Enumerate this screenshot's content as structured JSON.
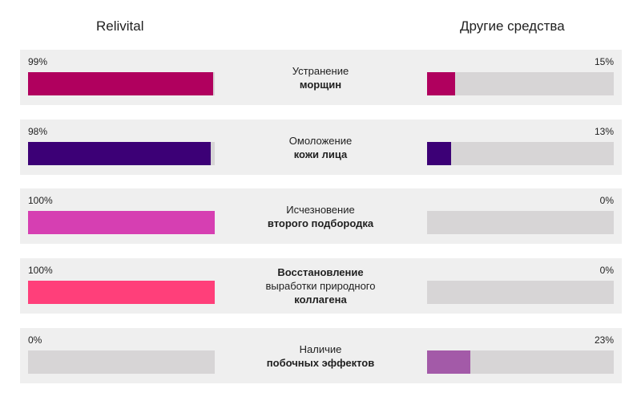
{
  "chart_data": {
    "type": "bar",
    "orientation": "horizontal",
    "series": [
      {
        "name": "Relivital",
        "colors": [
          "#b0005e",
          "#3c0076",
          "#d63fb2",
          "#ff3f7a",
          "#d7d5d6"
        ],
        "values": [
          99,
          98,
          100,
          100,
          0
        ],
        "labels": [
          "99%",
          "98%",
          "100%",
          "100%",
          "0%"
        ]
      },
      {
        "name": "Другие средства",
        "colors": [
          "#b0005e",
          "#3c0076",
          "#d63fb2",
          "#ff3f7a",
          "#a35aa8"
        ],
        "values": [
          15,
          13,
          0,
          0,
          23
        ],
        "labels": [
          "15%",
          "13%",
          "0%",
          "0%",
          "23%"
        ]
      }
    ],
    "categories": [
      {
        "lines": [
          {
            "text": "Устранение",
            "bold": false
          },
          {
            "text": "морщин",
            "bold": true
          }
        ]
      },
      {
        "lines": [
          {
            "text": "Омоложение",
            "bold": false
          },
          {
            "text": "кожи лица",
            "bold": true
          }
        ]
      },
      {
        "lines": [
          {
            "text": "Исчезновение",
            "bold": false
          },
          {
            "text": "второго подбородка",
            "bold": true
          }
        ]
      },
      {
        "lines": [
          {
            "text": "Восстановление",
            "bold": true
          },
          {
            "text": "выработки природного",
            "bold": false
          },
          {
            "text": "коллагена",
            "bold": true
          }
        ]
      },
      {
        "lines": [
          {
            "text": "Наличие",
            "bold": false
          },
          {
            "text": "побочных эффектов",
            "bold": true
          }
        ]
      }
    ],
    "xlim": [
      0,
      100
    ],
    "track_color": "#d7d5d6",
    "row_background": "#efefef"
  }
}
